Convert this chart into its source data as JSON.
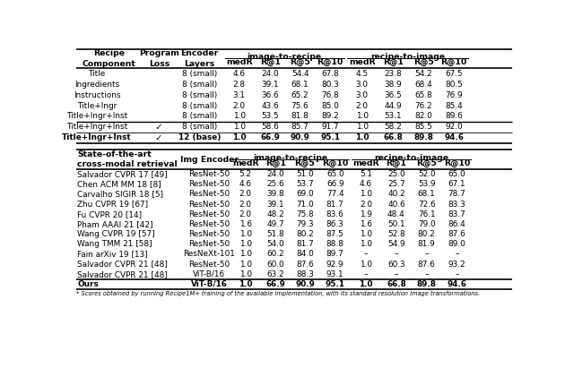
{
  "table1_rows": [
    [
      "Title",
      "",
      "8 (small)",
      "4.6",
      "24.0",
      "54.4",
      "67.8",
      "4.5",
      "23.8",
      "54.2",
      "67.5"
    ],
    [
      "Ingredients",
      "",
      "8 (small)",
      "2.8",
      "39.1",
      "68.1",
      "80.3",
      "3.0",
      "38.9",
      "68.4",
      "80.5"
    ],
    [
      "Instructions",
      "",
      "8 (small)",
      "3.1",
      "36.6",
      "65.2",
      "76.8",
      "3.0",
      "36.5",
      "65.8",
      "76.9"
    ],
    [
      "Title+Ingr",
      "",
      "8 (small)",
      "2.0",
      "43.6",
      "75.6",
      "85.0",
      "2.0",
      "44.9",
      "76.2",
      "85.4"
    ],
    [
      "Title+Ingr+Inst",
      "",
      "8 (small)",
      "1.0",
      "53.5",
      "81.8",
      "89.2",
      "1.0",
      "53.1",
      "82.0",
      "89.6"
    ],
    [
      "Title+Ingr+Inst",
      "✓",
      "8 (small)",
      "1.0",
      "58.6",
      "85.7",
      "91.7",
      "1.0",
      "58.2",
      "85.5",
      "92.0"
    ],
    [
      "Title+Ingr+Inst",
      "✓",
      "12 (base)",
      "1.0",
      "66.9",
      "90.9",
      "95.1",
      "1.0",
      "66.8",
      "89.8",
      "94.6"
    ]
  ],
  "table1_bold_rows": [
    6
  ],
  "table1_thick_sep_after": [
    4
  ],
  "table1_thin_sep_after": [
    5
  ],
  "table2_rows": [
    [
      "Salvador CVPR 17 [49]",
      "ResNet-50",
      "5.2",
      "24.0",
      "51.0",
      "65.0",
      "5.1",
      "25.0",
      "52.0",
      "65.0"
    ],
    [
      "Chen ACM MM 18 [8]",
      "ResNet-50",
      "4.6",
      "25.6",
      "53.7",
      "66.9",
      "4.6",
      "25.7",
      "53.9",
      "67.1"
    ],
    [
      "Carvalho SIGIR 18 [5]",
      "ResNet-50",
      "2.0",
      "39.8",
      "69.0",
      "77.4",
      "1.0",
      "40.2",
      "68.1",
      "78.7"
    ],
    [
      "Zhu CVPR 19 [67]",
      "ResNet-50",
      "2.0",
      "39.1",
      "71.0",
      "81.7",
      "2.0",
      "40.6",
      "72.6",
      "83.3"
    ],
    [
      "Fu CVPR 20 [14]",
      "ResNet-50",
      "2.0",
      "48.2",
      "75.8",
      "83.6",
      "1.9",
      "48.4",
      "76.1",
      "83.7"
    ],
    [
      "Pham AAAI 21 [42]",
      "ResNet-50",
      "1.6",
      "49.7",
      "79.3",
      "86.3",
      "1.6",
      "50.1",
      "79.0",
      "86.4"
    ],
    [
      "Wang CVPR 19 [57]",
      "ResNet-50",
      "1.0",
      "51.8",
      "80.2",
      "87.5",
      "1.0",
      "52.8",
      "80.2",
      "87.6"
    ],
    [
      "Wang TMM 21 [58]",
      "ResNet-50",
      "1.0",
      "54.0",
      "81.7",
      "88.8",
      "1.0",
      "54.9",
      "81.9",
      "89.0"
    ],
    [
      "Fain arXiv 19 [13]",
      "ResNeXt-101",
      "1.0",
      "60.2",
      "84.0",
      "89.7",
      "–",
      "–",
      "–",
      "–"
    ],
    [
      "Salvador CVPR 21 [48]",
      "ResNet-50",
      "1.0",
      "60.0",
      "87.6",
      "92.9",
      "1.0",
      "60.3",
      "87.6",
      "93.2"
    ],
    [
      "Salvador CVPR 21 [48]",
      "ViT-B/16",
      "1.0",
      "63.2",
      "88.3",
      "93.1",
      "–",
      "–",
      "–",
      "–"
    ],
    [
      "Ours",
      "ViT-B/16",
      "1.0",
      "66.9",
      "90.9",
      "95.1",
      "1.0",
      "66.8",
      "89.8",
      "94.6"
    ]
  ],
  "table2_bold_rows": [
    11
  ],
  "bg_color": "#ffffff",
  "caption": "* Scores obtained by running Recipe1M+ training of the available implementation, with its standard resolution image transformations."
}
